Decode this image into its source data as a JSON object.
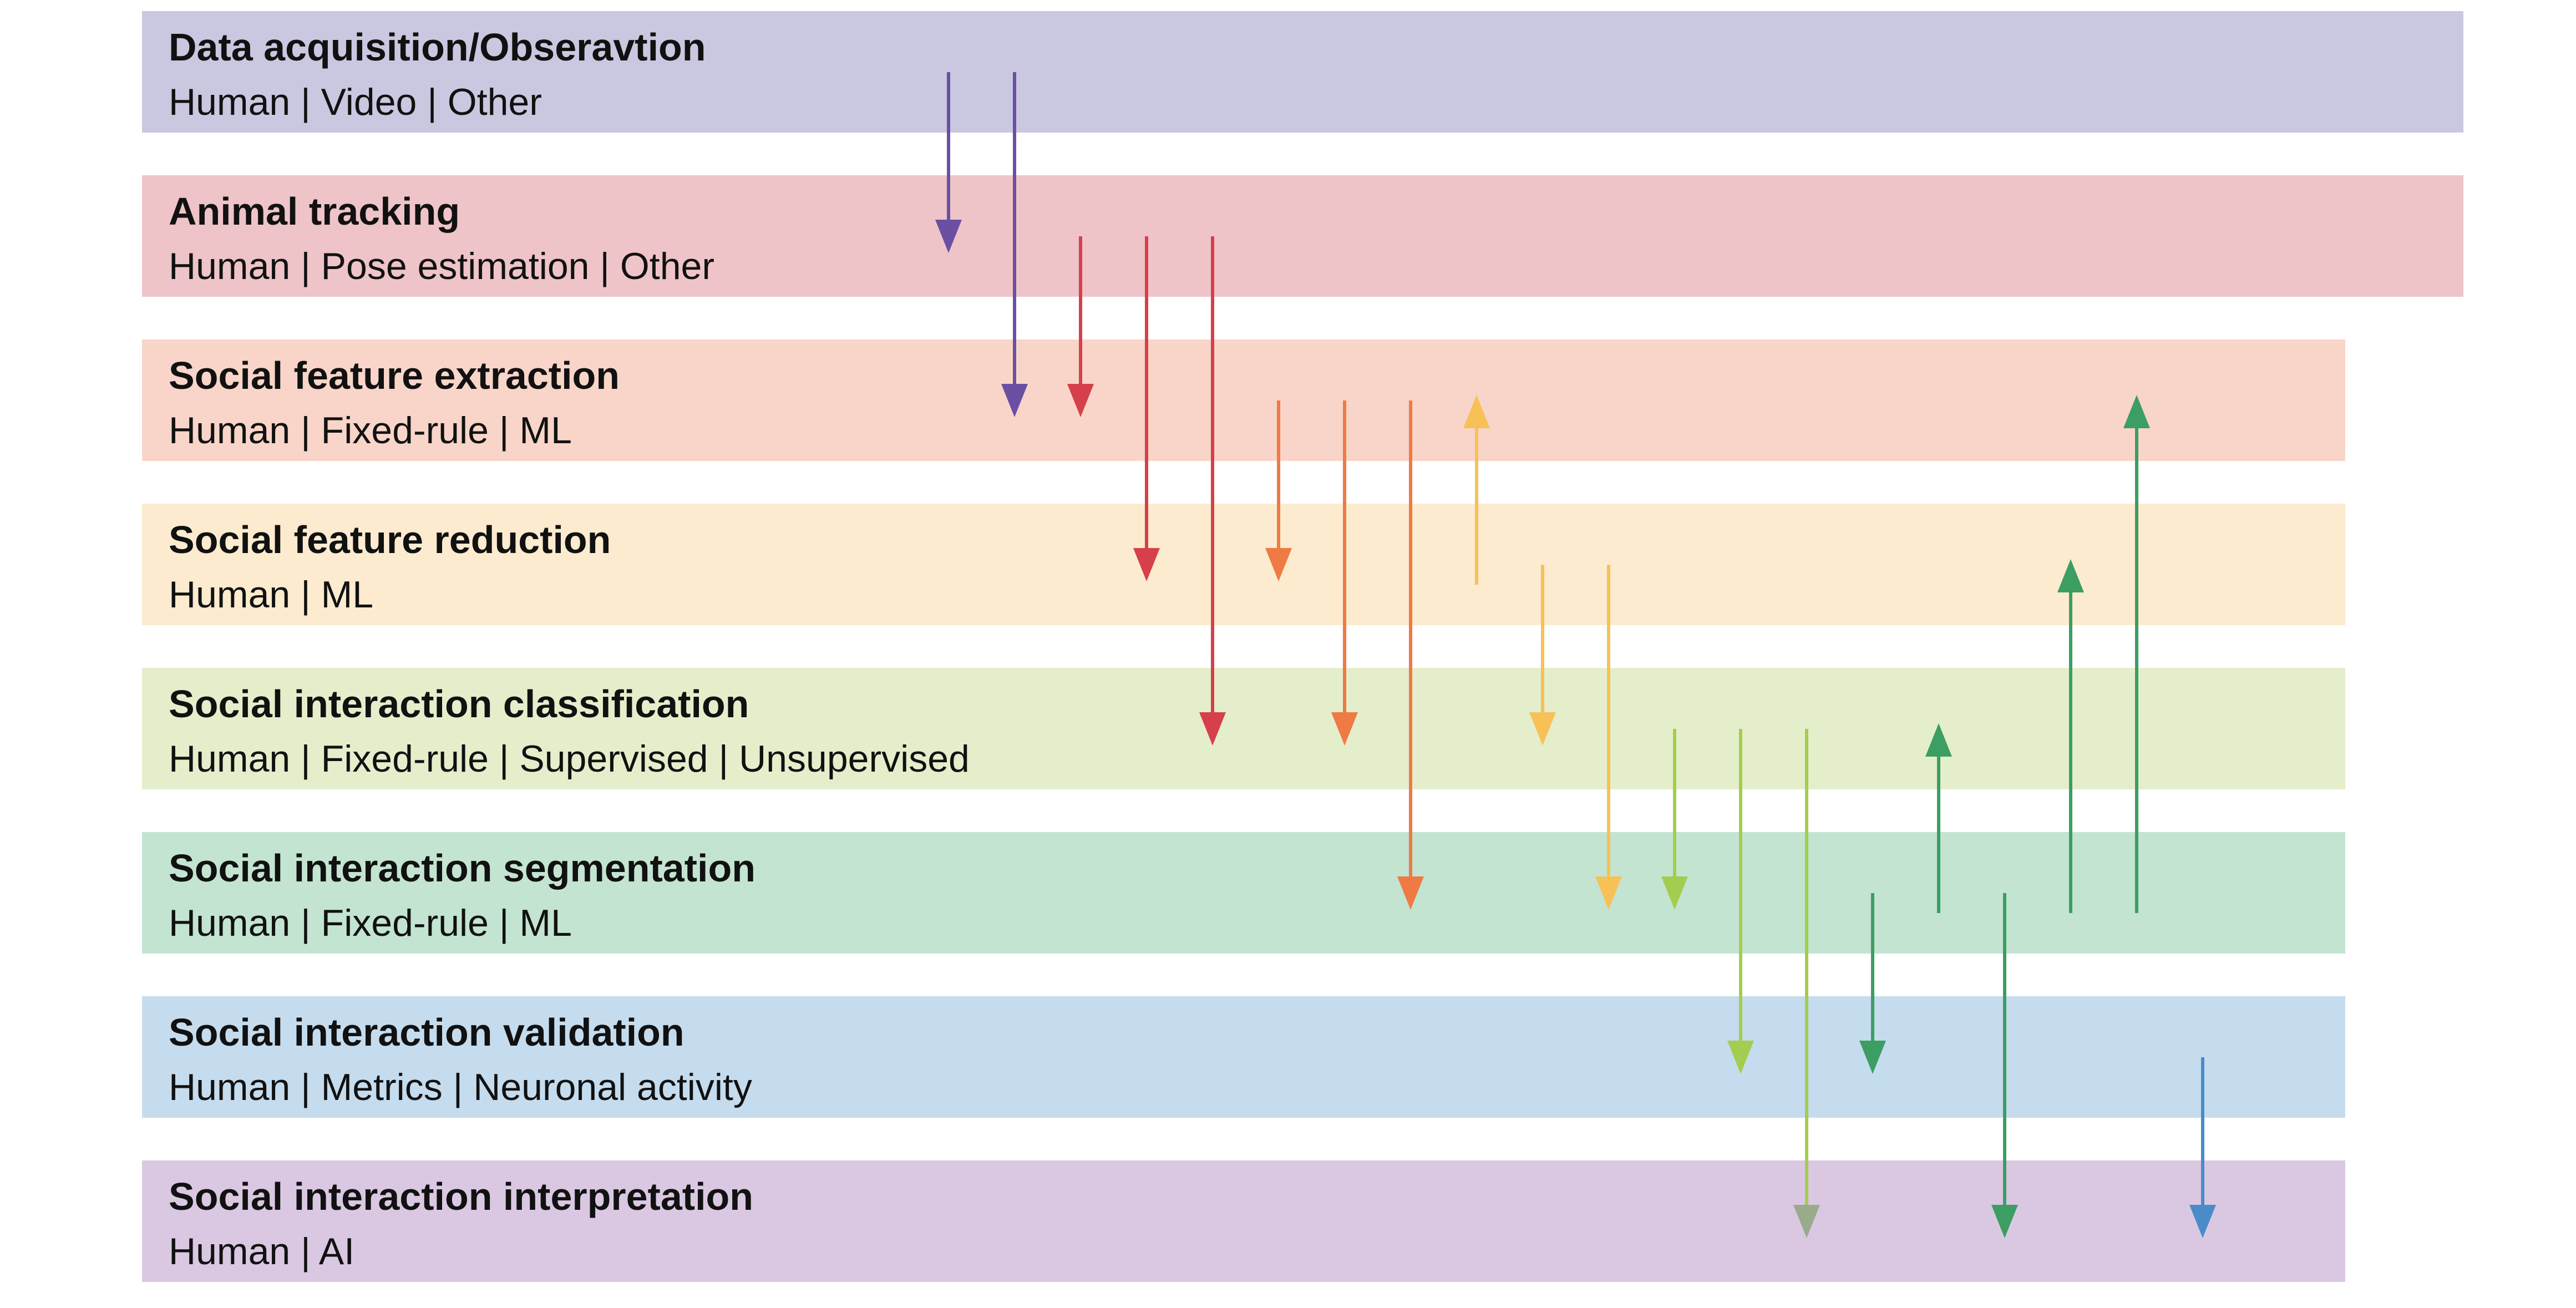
{
  "stages": [
    {
      "id": "data-acquisition",
      "title": "Data acquisition/Obseravtion",
      "options": "Human | Video | Other",
      "color": "#cac8e0"
    },
    {
      "id": "animal-tracking",
      "title": "Animal tracking",
      "options": "Human | Pose estimation | Other",
      "color": "#eec4c8"
    },
    {
      "id": "social-feature-extraction",
      "title": "Social feature extraction",
      "options": "Human | Fixed-rule | ML",
      "color": "#f8d5c8"
    },
    {
      "id": "social-feature-reduction",
      "title": "Social feature reduction",
      "options": "Human | ML",
      "color": "#fcebcf"
    },
    {
      "id": "social-interaction-classification",
      "title": "Social interaction classification",
      "options": "Human | Fixed-rule | Supervised | Unsupervised",
      "color": "#e5eecb"
    },
    {
      "id": "social-interaction-segmentation",
      "title": "Social interaction segmentation",
      "options": "Human | Fixed-rule | ML",
      "color": "#c3e4d1"
    },
    {
      "id": "social-interaction-validation",
      "title": "Social interaction validation",
      "options": "Human | Metrics | Neuronal activity",
      "color": "#c5dcee"
    },
    {
      "id": "social-interaction-interpretation",
      "title": "Social interaction interpretation",
      "options": "Human | AI",
      "color": "#dac8e2"
    }
  ],
  "connections": [
    {
      "from": 0,
      "to": 1,
      "color": "#6a4fa3"
    },
    {
      "from": 0,
      "to": 2,
      "color": "#6a4fa3"
    },
    {
      "from": 1,
      "to": 2,
      "color": "#d5404a"
    },
    {
      "from": 1,
      "to": 3,
      "color": "#d5404a"
    },
    {
      "from": 1,
      "to": 4,
      "color": "#d5404a"
    },
    {
      "from": 2,
      "to": 3,
      "color": "#ef7a44"
    },
    {
      "from": 2,
      "to": 4,
      "color": "#ef7a44"
    },
    {
      "from": 2,
      "to": 5,
      "color": "#ef7a44"
    },
    {
      "from": 3,
      "to": 2,
      "color": "#f7c157"
    },
    {
      "from": 3,
      "to": 4,
      "color": "#f7c157"
    },
    {
      "from": 3,
      "to": 5,
      "color": "#f7c157"
    },
    {
      "from": 4,
      "to": 5,
      "color": "#a3cd4e"
    },
    {
      "from": 4,
      "to": 6,
      "color": "#a3cd4e"
    },
    {
      "from": 4,
      "to": 7,
      "color": "#a3cd4e",
      "head_color": "#9aab8c"
    },
    {
      "from": 5,
      "to": 6,
      "color": "#3c9e62"
    },
    {
      "from": 5,
      "to": 4,
      "color": "#3c9e62"
    },
    {
      "from": 5,
      "to": 7,
      "color": "#3c9e62"
    },
    {
      "from": 5,
      "to": 3,
      "color": "#3c9e62"
    },
    {
      "from": 5,
      "to": 2,
      "color": "#3c9e62"
    },
    {
      "from": 6,
      "to": 7,
      "color": "#4a8cc9"
    }
  ]
}
